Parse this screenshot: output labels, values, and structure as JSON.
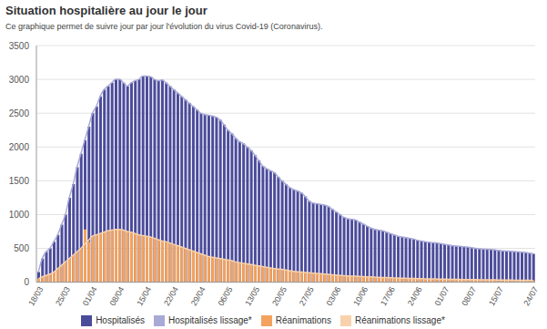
{
  "chart_data": {
    "type": "bar",
    "title": "Situation hospitalière au jour le jour",
    "subtitle": "Ce graphique permet de suivre jour par jour l'évolution du virus Covid-19 (Coronavirus).",
    "categories": [
      "18/03",
      null,
      null,
      null,
      null,
      null,
      null,
      "25/03",
      null,
      null,
      null,
      null,
      null,
      null,
      "01/04",
      null,
      null,
      null,
      null,
      null,
      null,
      "08/04",
      null,
      null,
      null,
      null,
      null,
      null,
      "15/04",
      null,
      null,
      null,
      null,
      null,
      null,
      "22/04",
      null,
      null,
      null,
      null,
      null,
      null,
      "29/04",
      null,
      null,
      null,
      null,
      null,
      null,
      "06/05",
      null,
      null,
      null,
      null,
      null,
      null,
      "13/05",
      null,
      null,
      null,
      null,
      null,
      null,
      "20/05",
      null,
      null,
      null,
      null,
      null,
      null,
      "27/05",
      null,
      null,
      null,
      null,
      null,
      null,
      "03/06",
      null,
      null,
      null,
      null,
      null,
      null,
      "10/06",
      null,
      null,
      null,
      null,
      null,
      null,
      "17/06",
      null,
      null,
      null,
      null,
      null,
      null,
      "24/06",
      null,
      null,
      null,
      null,
      null,
      null,
      "01/07",
      null,
      null,
      null,
      null,
      null,
      null,
      "08/07",
      null,
      null,
      null,
      null,
      null,
      null,
      "15/07",
      null,
      null,
      null,
      null,
      null,
      null,
      null,
      null,
      "24/07"
    ],
    "ylim": [
      0,
      3500
    ],
    "yticks": [
      0,
      500,
      1000,
      1500,
      2000,
      2500,
      3000,
      3500
    ],
    "grid": true,
    "legend": "bottom",
    "series": [
      {
        "name": "Hospitalisés",
        "type": "bar",
        "color": "#4b4b9b",
        "values": [
          150,
          350,
          450,
          500,
          600,
          700,
          850,
          1000,
          1250,
          1450,
          1700,
          1900,
          2100,
          2300,
          2500,
          2600,
          2750,
          2850,
          2900,
          2950,
          3000,
          3000,
          2950,
          2900,
          2950,
          2980,
          3000,
          3050,
          3050,
          3040,
          3000,
          2980,
          2990,
          2950,
          2900,
          2850,
          2800,
          2750,
          2700,
          2650,
          2600,
          2550,
          2500,
          2480,
          2470,
          2460,
          2440,
          2400,
          2330,
          2250,
          2200,
          2130,
          2080,
          2050,
          2000,
          1950,
          1880,
          1800,
          1720,
          1680,
          1650,
          1620,
          1560,
          1500,
          1450,
          1400,
          1370,
          1350,
          1320,
          1270,
          1200,
          1170,
          1160,
          1150,
          1140,
          1120,
          1080,
          1040,
          1000,
          960,
          940,
          930,
          920,
          890,
          860,
          830,
          800,
          780,
          770,
          760,
          740,
          720,
          700,
          680,
          670,
          660,
          650,
          640,
          620,
          610,
          600,
          590,
          585,
          580,
          570,
          560,
          550,
          540,
          535,
          530,
          525,
          520,
          510,
          500,
          495,
          490,
          488,
          485,
          480,
          470,
          465,
          460,
          458,
          455,
          450,
          445,
          440,
          430,
          420
        ]
      },
      {
        "name": "Réanimations",
        "type": "bar",
        "color": "#f3a35e",
        "values": [
          50,
          80,
          100,
          120,
          150,
          200,
          250,
          300,
          350,
          400,
          450,
          500,
          780,
          600,
          680,
          700,
          720,
          740,
          760,
          770,
          780,
          780,
          770,
          750,
          740,
          720,
          700,
          690,
          680,
          670,
          650,
          630,
          610,
          600,
          580,
          560,
          540,
          520,
          500,
          480,
          460,
          440,
          420,
          400,
          380,
          370,
          360,
          350,
          340,
          330,
          320,
          300,
          290,
          280,
          270,
          260,
          250,
          240,
          230,
          220,
          210,
          200,
          195,
          190,
          180,
          170,
          160,
          155,
          150,
          145,
          140,
          135,
          130,
          125,
          120,
          115,
          110,
          105,
          100,
          95,
          92,
          90,
          88,
          85,
          82,
          80,
          78,
          75,
          72,
          70,
          68,
          66,
          64,
          62,
          60,
          58,
          56,
          55,
          54,
          52,
          50,
          49,
          48,
          47,
          46,
          45,
          44,
          43,
          42,
          41,
          40,
          40,
          39,
          38,
          37,
          36,
          35,
          35,
          34,
          33,
          32,
          32,
          31,
          30,
          30,
          29,
          28,
          28,
          27
        ]
      },
      {
        "name": "Hospitalisés lissage*",
        "type": "line",
        "color": "#a9a9d8",
        "values": [
          150,
          350,
          450,
          500,
          600,
          700,
          850,
          1000,
          1250,
          1450,
          1700,
          1900,
          2100,
          2300,
          2500,
          2600,
          2750,
          2850,
          2900,
          2950,
          3000,
          3000,
          2950,
          2900,
          2950,
          2980,
          3000,
          3050,
          3050,
          3040,
          3000,
          2980,
          2990,
          2950,
          2900,
          2850,
          2800,
          2750,
          2700,
          2650,
          2600,
          2550,
          2500,
          2480,
          2470,
          2460,
          2440,
          2400,
          2330,
          2250,
          2200,
          2130,
          2080,
          2050,
          2000,
          1950,
          1880,
          1800,
          1720,
          1680,
          1650,
          1620,
          1560,
          1500,
          1450,
          1400,
          1370,
          1350,
          1320,
          1270,
          1200,
          1170,
          1160,
          1150,
          1140,
          1120,
          1080,
          1040,
          1000,
          960,
          940,
          930,
          920,
          890,
          860,
          830,
          800,
          780,
          770,
          760,
          740,
          720,
          700,
          680,
          670,
          660,
          650,
          640,
          620,
          610,
          600,
          590,
          585,
          580,
          570,
          560,
          550,
          540,
          535,
          530,
          525,
          520,
          510,
          500,
          495,
          490,
          488,
          485,
          480,
          470,
          465,
          460,
          458,
          455,
          450,
          445,
          440,
          430,
          420
        ]
      },
      {
        "name": "Réanimations lissage*",
        "type": "line",
        "color": "#f8d2ac",
        "values": [
          50,
          80,
          100,
          120,
          150,
          200,
          250,
          300,
          350,
          400,
          450,
          500,
          560,
          620,
          680,
          700,
          720,
          740,
          760,
          770,
          780,
          780,
          770,
          750,
          740,
          720,
          700,
          690,
          680,
          670,
          650,
          630,
          610,
          600,
          580,
          560,
          540,
          520,
          500,
          480,
          460,
          440,
          420,
          400,
          380,
          370,
          360,
          350,
          340,
          330,
          320,
          300,
          290,
          280,
          270,
          260,
          250,
          240,
          230,
          220,
          210,
          200,
          195,
          190,
          180,
          170,
          160,
          155,
          150,
          145,
          140,
          135,
          130,
          125,
          120,
          115,
          110,
          105,
          100,
          95,
          92,
          90,
          88,
          85,
          82,
          80,
          78,
          75,
          72,
          70,
          68,
          66,
          64,
          62,
          60,
          58,
          56,
          55,
          54,
          52,
          50,
          49,
          48,
          47,
          46,
          45,
          44,
          43,
          42,
          41,
          40,
          40,
          39,
          38,
          37,
          36,
          35,
          35,
          34,
          33,
          32,
          32,
          31,
          30,
          30,
          29,
          28,
          28,
          27
        ]
      }
    ]
  }
}
